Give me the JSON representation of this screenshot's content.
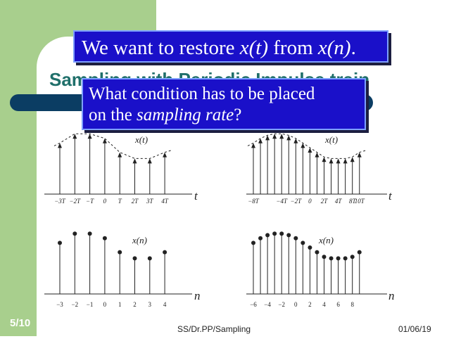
{
  "slide": {
    "title": "Sampling with Periodic Impulse train",
    "callout1": {
      "prefix": "We want to restore ",
      "x_t": "x(t)",
      "mid": " from ",
      "x_n": "x(n)",
      "suffix": "."
    },
    "callout2": {
      "line1": "What condition has to be placed",
      "line2_prefix": "on the ",
      "line2_em": "sampling rate",
      "line2_suffix": "?"
    },
    "page_number": "5/10",
    "footer_center": "SS/Dr.PP/Sampling",
    "footer_date": "01/06/19"
  },
  "colors": {
    "green_band": "#a8cf8d",
    "title": "#1f6f6a",
    "callout_bg": "#1a10c9",
    "bar": "#0b3d63"
  },
  "chart_data": [
    {
      "type": "stem",
      "signal_label": "x(t)",
      "axis_label": "t",
      "tick_labels": [
        "−3T",
        "−2T",
        "−T",
        "0",
        "T",
        "2T",
        "3T",
        "4T"
      ],
      "x": [
        -3,
        -2,
        -1,
        0,
        1,
        2,
        3,
        4
      ],
      "values": [
        0.66,
        0.78,
        0.78,
        0.72,
        0.54,
        0.46,
        0.46,
        0.54
      ],
      "arrowheads": true,
      "envelope": "dashed"
    },
    {
      "type": "stem",
      "signal_label": "x(t)",
      "axis_label": "t",
      "tick_labels": [
        "−8T",
        "−4T",
        "−2T",
        "0",
        "2T",
        "4T",
        "8T",
        "10T"
      ],
      "x": [
        -7,
        -6,
        -5,
        -4,
        -3,
        -2,
        -1,
        0,
        1,
        2,
        3,
        4,
        5,
        6,
        7,
        8
      ],
      "values": [
        0.66,
        0.72,
        0.76,
        0.78,
        0.78,
        0.76,
        0.72,
        0.66,
        0.6,
        0.54,
        0.48,
        0.46,
        0.46,
        0.46,
        0.48,
        0.54
      ],
      "arrowheads": true,
      "envelope": "dashed"
    },
    {
      "type": "stem",
      "signal_label": "x(n)",
      "axis_label": "n",
      "tick_labels": [
        "−3",
        "−2",
        "−1",
        "0",
        "1",
        "2",
        "3",
        "4"
      ],
      "x": [
        -3,
        -2,
        -1,
        0,
        1,
        2,
        3,
        4
      ],
      "values": [
        0.66,
        0.78,
        0.78,
        0.72,
        0.54,
        0.46,
        0.46,
        0.54
      ],
      "arrowheads": false
    },
    {
      "type": "stem",
      "signal_label": "x(n)",
      "axis_label": "n",
      "tick_labels": [
        "−6",
        "−4",
        "−2",
        "0",
        "2",
        "4",
        "6",
        "8"
      ],
      "x": [
        -7,
        -6,
        -5,
        -4,
        -3,
        -2,
        -1,
        0,
        1,
        2,
        3,
        4,
        5,
        6,
        7,
        8
      ],
      "values": [
        0.66,
        0.72,
        0.76,
        0.78,
        0.78,
        0.76,
        0.72,
        0.66,
        0.6,
        0.54,
        0.48,
        0.46,
        0.46,
        0.46,
        0.48,
        0.54
      ],
      "arrowheads": false
    }
  ]
}
